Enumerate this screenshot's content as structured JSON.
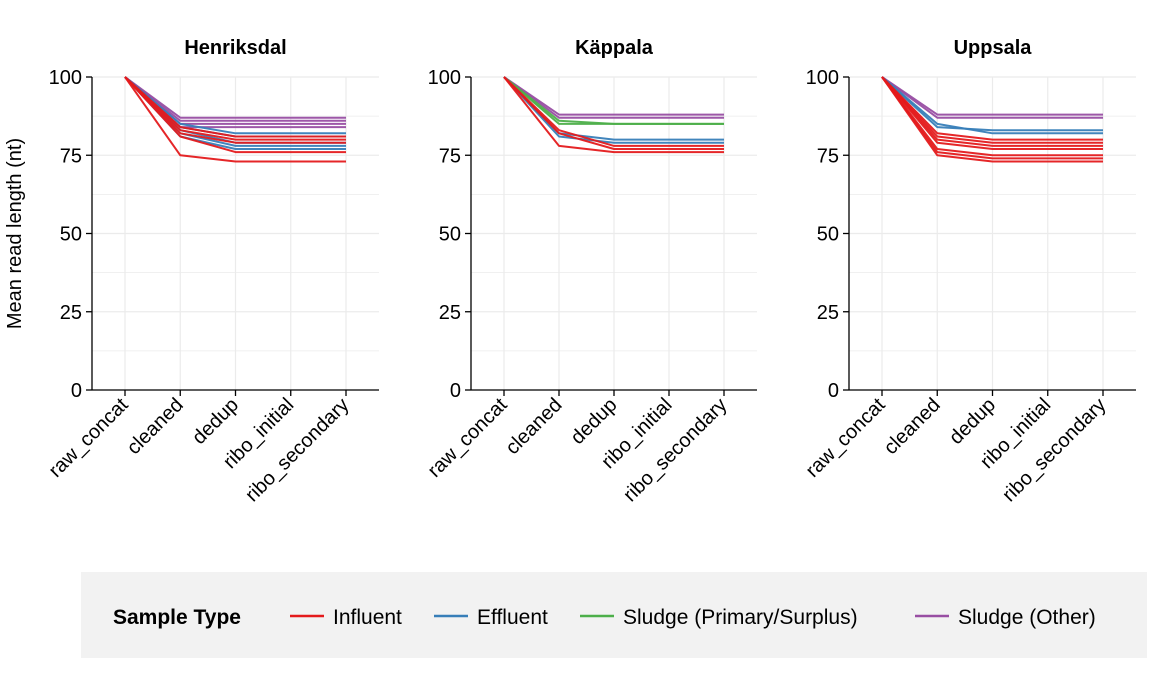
{
  "chart_data": {
    "type": "line",
    "ylabel": "Mean read length (nt)",
    "ylim": [
      0,
      100
    ],
    "yticks": [
      0,
      25,
      50,
      75,
      100
    ],
    "categories": [
      "raw_concat",
      "cleaned",
      "dedup",
      "ribo_initial",
      "ribo_secondary"
    ],
    "legend": {
      "title": "Sample Type",
      "placement": "bottom",
      "entries": [
        {
          "name": "Influent",
          "color": "#e41a1c"
        },
        {
          "name": "Effluent",
          "color": "#377eb8"
        },
        {
          "name": "Sludge (Primary/Surplus)",
          "color": "#4daf4a"
        },
        {
          "name": "Sludge (Other)",
          "color": "#984ea3"
        }
      ]
    },
    "grid": true,
    "panels": [
      {
        "title": "Henriksdal",
        "series": [
          {
            "type": "Sludge (Other)",
            "values": [
              100,
              87,
              87,
              87,
              87
            ]
          },
          {
            "type": "Sludge (Other)",
            "values": [
              100,
              86,
              86,
              86,
              86
            ]
          },
          {
            "type": "Sludge (Other)",
            "values": [
              100,
              85,
              85,
              85,
              85
            ]
          },
          {
            "type": "Sludge (Other)",
            "values": [
              100,
              84,
              84,
              84,
              84
            ]
          },
          {
            "type": "Effluent",
            "values": [
              100,
              85,
              82,
              82,
              82
            ]
          },
          {
            "type": "Effluent",
            "values": [
              100,
              84,
              81,
              81,
              81
            ]
          },
          {
            "type": "Effluent",
            "values": [
              100,
              83,
              79,
              79,
              79
            ]
          },
          {
            "type": "Effluent",
            "values": [
              100,
              82,
              78,
              78,
              78
            ]
          },
          {
            "type": "Effluent",
            "values": [
              100,
              81,
              77,
              77,
              77
            ]
          },
          {
            "type": "Influent",
            "values": [
              100,
              84,
              81,
              81,
              81
            ]
          },
          {
            "type": "Influent",
            "values": [
              100,
              83,
              80,
              80,
              80
            ]
          },
          {
            "type": "Influent",
            "values": [
              100,
              82,
              79,
              79,
              79
            ]
          },
          {
            "type": "Influent",
            "values": [
              100,
              81,
              76,
              76,
              76
            ]
          },
          {
            "type": "Influent",
            "values": [
              100,
              75,
              73,
              73,
              73
            ]
          }
        ]
      },
      {
        "title": "Käppala",
        "series": [
          {
            "type": "Sludge (Other)",
            "values": [
              100,
              88,
              88,
              88,
              88
            ]
          },
          {
            "type": "Sludge (Other)",
            "values": [
              100,
              87,
              87,
              87,
              87
            ]
          },
          {
            "type": "Sludge (Primary/Surplus)",
            "values": [
              100,
              85,
              85,
              85,
              85
            ]
          },
          {
            "type": "Sludge (Primary/Surplus)",
            "values": [
              100,
              86,
              85,
              85,
              85
            ]
          },
          {
            "type": "Effluent",
            "values": [
              100,
              82,
              80,
              80,
              80
            ]
          },
          {
            "type": "Effluent",
            "values": [
              100,
              81,
              79,
              79,
              79
            ]
          },
          {
            "type": "Influent",
            "values": [
              100,
              83,
              78,
              78,
              78
            ]
          },
          {
            "type": "Influent",
            "values": [
              100,
              82,
              77,
              77,
              77
            ]
          },
          {
            "type": "Influent",
            "values": [
              100,
              78,
              76,
              76,
              76
            ]
          }
        ]
      },
      {
        "title": "Uppsala",
        "series": [
          {
            "type": "Sludge (Other)",
            "values": [
              100,
              88,
              88,
              88,
              88
            ]
          },
          {
            "type": "Sludge (Other)",
            "values": [
              100,
              87,
              87,
              87,
              87
            ]
          },
          {
            "type": "Effluent",
            "values": [
              100,
              84,
              83,
              83,
              83
            ]
          },
          {
            "type": "Effluent",
            "values": [
              100,
              85,
              82,
              82,
              82
            ]
          },
          {
            "type": "Influent",
            "values": [
              100,
              82,
              80,
              80,
              80
            ]
          },
          {
            "type": "Influent",
            "values": [
              100,
              81,
              79,
              79,
              79
            ]
          },
          {
            "type": "Influent",
            "values": [
              100,
              80,
              78,
              78,
              78
            ]
          },
          {
            "type": "Influent",
            "values": [
              100,
              79,
              77,
              77,
              77
            ]
          },
          {
            "type": "Influent",
            "values": [
              100,
              77,
              75,
              75,
              75
            ]
          },
          {
            "type": "Influent",
            "values": [
              100,
              76,
              74,
              74,
              74
            ]
          },
          {
            "type": "Influent",
            "values": [
              100,
              75,
              73,
              73,
              73
            ]
          }
        ]
      }
    ]
  }
}
